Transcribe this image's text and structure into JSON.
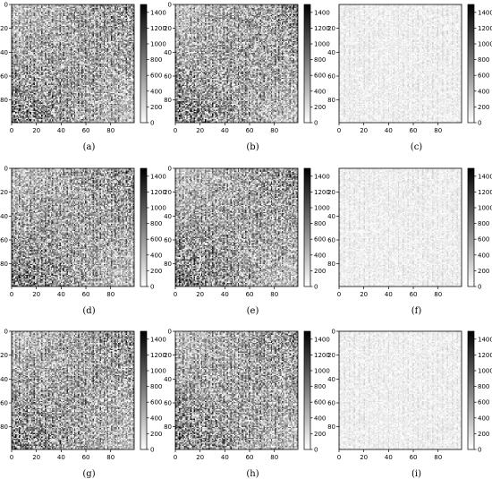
{
  "chart_data": [
    {
      "type": "heatmap",
      "caption": "(a)",
      "density": 0.8,
      "xticks": [
        0,
        20,
        40,
        60,
        80
      ],
      "yticks": [
        0,
        20,
        40,
        60,
        80
      ],
      "xlim": [
        0,
        99
      ],
      "ylim": [
        99,
        0
      ],
      "colorbar": {
        "ticks": [
          0,
          200,
          400,
          600,
          800,
          1000,
          1200,
          1400
        ],
        "range": [
          0,
          1500
        ],
        "colormap": "gray_r"
      }
    },
    {
      "type": "heatmap",
      "caption": "(b)",
      "density": 0.8,
      "xticks": [
        0,
        20,
        40,
        60,
        80
      ],
      "yticks": [
        0,
        20,
        40,
        60,
        80
      ],
      "xlim": [
        0,
        99
      ],
      "ylim": [
        99,
        0
      ],
      "colorbar": {
        "ticks": [
          0,
          200,
          400,
          600,
          800,
          1000,
          1200,
          1400
        ],
        "range": [
          0,
          1500
        ],
        "colormap": "gray_r"
      }
    },
    {
      "type": "heatmap",
      "caption": "(c)",
      "density": 0.12,
      "xticks": [
        0,
        20,
        40,
        60,
        80
      ],
      "yticks": [
        20,
        40,
        60,
        80
      ],
      "xlim": [
        0,
        99
      ],
      "ylim": [
        99,
        0
      ],
      "colorbar": {
        "ticks": [
          0,
          200,
          400,
          600,
          800,
          1000,
          1200,
          1400
        ],
        "range": [
          0,
          1500
        ],
        "colormap": "gray_r"
      }
    },
    {
      "type": "heatmap",
      "caption": "(d)",
      "density": 0.8,
      "xticks": [
        0,
        20,
        40,
        60,
        80
      ],
      "yticks": [
        0,
        20,
        40,
        60,
        80
      ],
      "xlim": [
        0,
        99
      ],
      "ylim": [
        99,
        0
      ],
      "colorbar": {
        "ticks": [
          0,
          200,
          400,
          600,
          800,
          1000,
          1200,
          1400
        ],
        "range": [
          0,
          1500
        ],
        "colormap": "gray_r"
      }
    },
    {
      "type": "heatmap",
      "caption": "(e)",
      "density": 0.8,
      "xticks": [
        0,
        20,
        40,
        60,
        80
      ],
      "yticks": [
        0,
        20,
        40,
        60,
        80
      ],
      "xlim": [
        0,
        99
      ],
      "ylim": [
        99,
        0
      ],
      "colorbar": {
        "ticks": [
          0,
          200,
          400,
          600,
          800,
          1000,
          1200,
          1400
        ],
        "range": [
          0,
          1500
        ],
        "colormap": "gray_r"
      }
    },
    {
      "type": "heatmap",
      "caption": "(f)",
      "density": 0.12,
      "xticks": [
        0,
        20,
        40,
        60,
        80
      ],
      "yticks": [
        20,
        40,
        60,
        80
      ],
      "xlim": [
        0,
        99
      ],
      "ylim": [
        99,
        0
      ],
      "colorbar": {
        "ticks": [
          0,
          200,
          400,
          600,
          800,
          1000,
          1200,
          1400
        ],
        "range": [
          0,
          1500
        ],
        "colormap": "gray_r"
      }
    },
    {
      "type": "heatmap",
      "caption": "(g)",
      "density": 0.8,
      "xticks": [
        0,
        20,
        40,
        60,
        80
      ],
      "yticks": [
        0,
        20,
        40,
        60,
        80
      ],
      "xlim": [
        0,
        99
      ],
      "ylim": [
        99,
        0
      ],
      "colorbar": {
        "ticks": [
          0,
          200,
          400,
          600,
          800,
          1000,
          1200,
          1400
        ],
        "range": [
          0,
          1500
        ],
        "colormap": "gray_r"
      }
    },
    {
      "type": "heatmap",
      "caption": "(h)",
      "density": 0.8,
      "xticks": [
        0,
        20,
        40,
        60,
        80
      ],
      "yticks": [
        0,
        20,
        40,
        60,
        80
      ],
      "xlim": [
        0,
        99
      ],
      "ylim": [
        99,
        0
      ],
      "colorbar": {
        "ticks": [
          0,
          200,
          400,
          600,
          800,
          1000,
          1200,
          1400
        ],
        "range": [
          0,
          1500
        ],
        "colormap": "gray_r"
      }
    },
    {
      "type": "heatmap",
      "caption": "(i)",
      "density": 0.12,
      "xticks": [
        0,
        20,
        40,
        60,
        80
      ],
      "yticks": [
        0,
        20,
        40,
        60,
        80
      ],
      "xlim": [
        0,
        99
      ],
      "ylim": [
        99,
        0
      ],
      "colorbar": {
        "ticks": [
          0,
          200,
          400,
          600,
          800,
          1000,
          1200,
          1400
        ],
        "range": [
          0,
          1500
        ],
        "colormap": "gray_r"
      }
    }
  ]
}
